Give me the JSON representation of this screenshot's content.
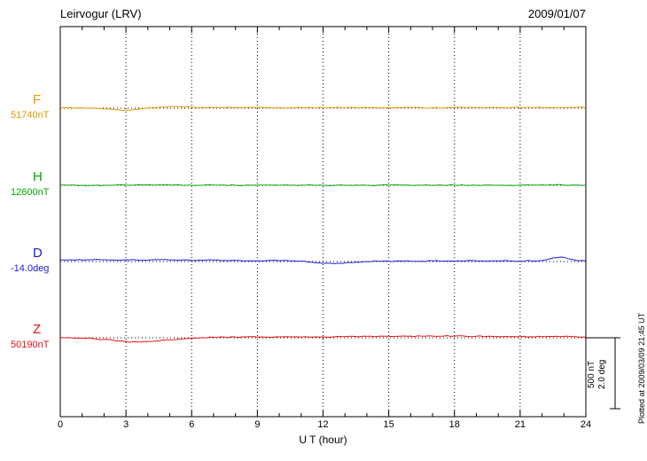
{
  "header": {
    "title": "Leirvogur (LRV)",
    "date": "2009/01/07"
  },
  "axis": {
    "xlabel": "U T (hour)",
    "tick_labels": [
      "0",
      "3",
      "6",
      "9",
      "12",
      "15",
      "18",
      "21",
      "24"
    ]
  },
  "scalebar": {
    "nt_label": "500 nT",
    "deg_label": "2.0 deg"
  },
  "plotted_note": "Plotted at 2009/03/09 21:45 UT",
  "chart_data": {
    "type": "line",
    "title": "Leirvogur (LRV)",
    "subtitle": "2009/01/07",
    "xlabel": "U T (hour)",
    "x_range": [
      0,
      24
    ],
    "x_ticks": [
      0,
      3,
      6,
      9,
      12,
      15,
      18,
      21,
      24
    ],
    "x_step_hours": 0.5,
    "grid": "dotted-vertical-every-3h",
    "scale": {
      "nT_per_bar": 500,
      "deg_per_bar": 2.0,
      "note": "scale bar at right equals 500 nT for F,H,Z and 2.0 deg for D"
    },
    "series": [
      {
        "id": "F",
        "letter": "F",
        "value_label": "51740nT",
        "baseline_value": 51740,
        "units": "nT",
        "color": "#e09a00",
        "offsets_from_baseline": [
          3,
          3,
          2,
          0,
          -6,
          -12,
          -14,
          -8,
          0,
          8,
          12,
          10,
          7,
          5,
          4,
          4,
          3,
          4,
          4,
          3,
          3,
          3,
          4,
          4,
          3,
          3,
          2,
          3,
          4,
          3,
          3,
          4,
          3,
          3,
          3,
          2,
          3,
          3,
          4,
          4,
          3,
          3,
          4,
          5,
          4,
          4,
          3,
          5,
          4
        ]
      },
      {
        "id": "H",
        "letter": "H",
        "value_label": "12600nT",
        "baseline_value": 12600,
        "units": "nT",
        "color": "#00aa00",
        "offsets_from_baseline": [
          1,
          1,
          0,
          -1,
          0,
          1,
          2,
          3,
          4,
          3,
          2,
          1,
          0,
          0,
          1,
          1,
          0,
          1,
          2,
          1,
          0,
          0,
          1,
          1,
          0,
          -1,
          0,
          1,
          0,
          0,
          1,
          1,
          0,
          0,
          -1,
          0,
          1,
          0,
          0,
          1,
          0,
          0,
          1,
          2,
          3,
          2,
          1,
          2,
          1
        ]
      },
      {
        "id": "D",
        "letter": "D",
        "value_label": "-14.0deg",
        "baseline_value": -14.0,
        "units": "deg",
        "color": "#1c1cdd",
        "offsets_from_baseline": [
          0.05,
          0.05,
          0.04,
          0.05,
          0.05,
          0.04,
          0.05,
          0.04,
          0.04,
          0.05,
          0.04,
          0.04,
          0.03,
          0.03,
          0.04,
          0.03,
          0.03,
          0.02,
          0.02,
          0.03,
          0.02,
          0.02,
          0.01,
          -0.02,
          -0.05,
          -0.06,
          -0.04,
          -0.02,
          0.0,
          0.01,
          0.01,
          0.02,
          0.01,
          0.01,
          0.02,
          0.01,
          0.01,
          0.02,
          0.02,
          0.01,
          0.02,
          0.02,
          0.01,
          0.02,
          0.03,
          0.1,
          0.12,
          0.04,
          0.02
        ]
      },
      {
        "id": "Z",
        "letter": "Z",
        "value_label": "50190nT",
        "baseline_value": 50190,
        "units": "nT",
        "color": "#ee1111",
        "offsets_from_baseline": [
          2,
          0,
          -2,
          -6,
          -12,
          -20,
          -28,
          -30,
          -26,
          -22,
          -15,
          -8,
          -2,
          2,
          4,
          5,
          5,
          6,
          5,
          5,
          6,
          6,
          5,
          5,
          6,
          7,
          8,
          9,
          10,
          10,
          11,
          11,
          12,
          12,
          12,
          12,
          12,
          11,
          11,
          10,
          9,
          8,
          8,
          8,
          8,
          9,
          10,
          8,
          6
        ]
      }
    ]
  }
}
